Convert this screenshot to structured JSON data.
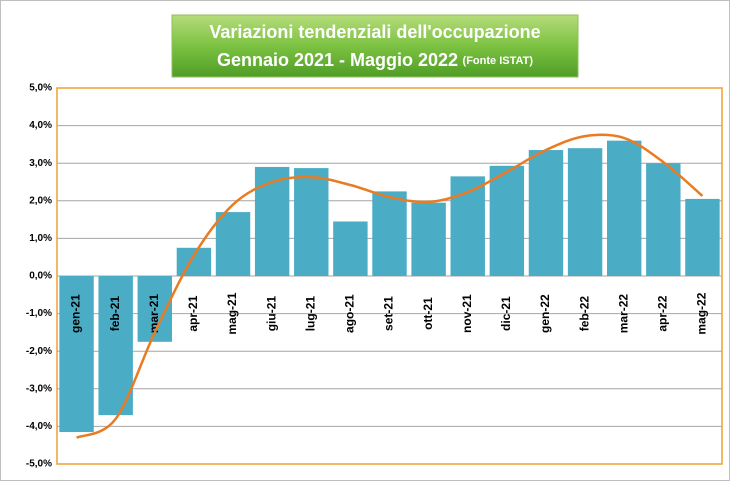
{
  "chart_data": {
    "type": "bar",
    "title": "Variazioni  tendenziali dell'occupazione",
    "subtitle": "Gennaio 2021 -  Maggio 2022",
    "source": "(Fonte ISTAT)",
    "categories": [
      "gen-21",
      "feb-21",
      "mar-21",
      "apr-21",
      "mag-21",
      "giu-21",
      "lug-21",
      "ago-21",
      "set-21",
      "ott-21",
      "nov-21",
      "dic-21",
      "gen-22",
      "feb-22",
      "mar-22",
      "apr-22",
      "mag-22"
    ],
    "series": [
      {
        "type": "bar",
        "color": "#4bacc6",
        "values": [
          -4.15,
          -3.7,
          -1.75,
          0.75,
          1.7,
          2.9,
          2.87,
          1.45,
          2.25,
          1.95,
          2.65,
          2.93,
          3.35,
          3.4,
          3.6,
          3.0,
          2.05
        ]
      },
      {
        "type": "smooth-line",
        "color": "#e97c22",
        "values": [
          -4.3,
          -3.8,
          -1.5,
          0.55,
          1.9,
          2.5,
          2.63,
          2.42,
          2.1,
          1.97,
          2.23,
          2.77,
          3.35,
          3.72,
          3.67,
          3.03,
          2.13
        ]
      }
    ],
    "ylim": [
      -5,
      5
    ],
    "yticks": [
      {
        "value": -5,
        "label": "-5,0%"
      },
      {
        "value": -4,
        "label": "-4,0%"
      },
      {
        "value": -3,
        "label": "-3,0%"
      },
      {
        "value": -2,
        "label": "-2,0%"
      },
      {
        "value": -1,
        "label": "-1,0%"
      },
      {
        "value": 0,
        "label": "0,0%"
      },
      {
        "value": 1,
        "label": "1,0%"
      },
      {
        "value": 2,
        "label": "2,0%"
      },
      {
        "value": 3,
        "label": "3,0%"
      },
      {
        "value": 4,
        "label": "4,0%"
      },
      {
        "value": 5,
        "label": "5,0%"
      }
    ],
    "grid": true
  }
}
